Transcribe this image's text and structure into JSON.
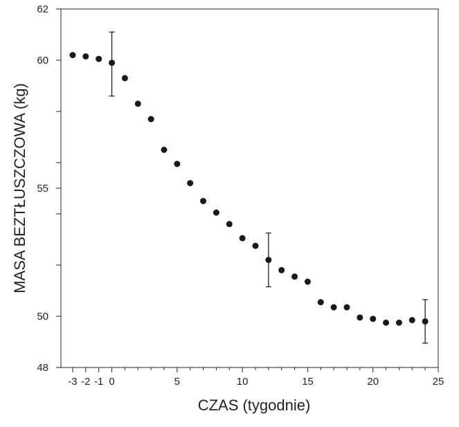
{
  "chart_data": {
    "type": "scatter",
    "xlabel": "CZAS (tygodnie)",
    "ylabel": "MASA BEZTŁUSZCZOWA (kg)",
    "xlim": [
      -3.9,
      25
    ],
    "ylim": [
      48,
      62
    ],
    "x_ticks": [
      -3,
      -2,
      -1,
      0,
      5,
      10,
      15,
      20,
      25
    ],
    "x_tick_labels": [
      "-3",
      "-2",
      "-1",
      "0",
      "5",
      "10",
      "15",
      "20",
      "25"
    ],
    "x_minor_ticks": [
      1,
      2,
      3,
      4,
      6,
      7,
      8,
      9,
      11,
      12,
      13,
      14,
      16,
      17,
      18,
      19,
      21,
      22,
      23,
      24
    ],
    "y_ticks": [
      48,
      50,
      52,
      54,
      55,
      56,
      58,
      60,
      62
    ],
    "y_tick_labels": [
      "48",
      "50",
      "",
      "",
      "55",
      "",
      "",
      "60",
      "62"
    ],
    "grid": false,
    "x": [
      -3,
      -2,
      -1,
      0,
      1,
      2,
      3,
      4,
      5,
      6,
      7,
      8,
      9,
      10,
      11,
      12,
      13,
      14,
      15,
      16,
      17,
      18,
      19,
      20,
      21,
      22,
      23,
      24
    ],
    "y": [
      60.2,
      60.15,
      60.05,
      59.9,
      59.3,
      58.3,
      57.7,
      56.5,
      55.95,
      55.2,
      54.5,
      54.05,
      53.6,
      53.05,
      52.75,
      52.2,
      51.8,
      51.55,
      51.35,
      50.55,
      50.35,
      50.35,
      49.95,
      49.9,
      49.75,
      49.75,
      49.85,
      49.8
    ],
    "error_bars": [
      {
        "x": 0,
        "y": 59.9,
        "low": 58.6,
        "high": 61.1
      },
      {
        "x": 12,
        "y": 52.2,
        "low": 51.15,
        "high": 53.25
      },
      {
        "x": 24,
        "y": 49.8,
        "low": 48.95,
        "high": 50.65
      }
    ],
    "colors": {
      "points": "#1a1a1a",
      "axis": "#222222"
    }
  }
}
